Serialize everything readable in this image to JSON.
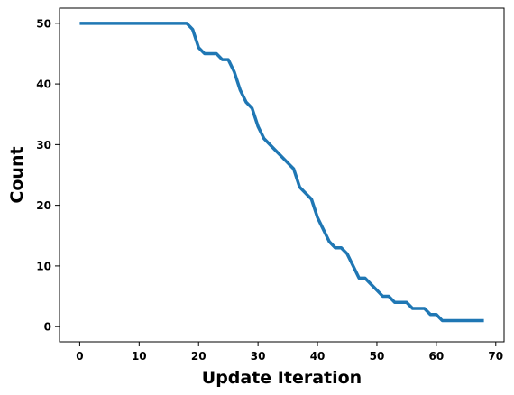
{
  "chart_data": {
    "type": "line",
    "title": "",
    "xlabel": "Update Iteration",
    "ylabel": "Count",
    "xlim": [
      -3.4,
      71.4
    ],
    "ylim": [
      -2.5,
      52.5
    ],
    "xticks": [
      0,
      10,
      20,
      30,
      40,
      50,
      60,
      70
    ],
    "yticks": [
      0,
      10,
      20,
      30,
      40,
      50
    ],
    "grid": false,
    "legend": "none",
    "color": "#1f77b4",
    "series": [
      {
        "x": [
          0,
          1,
          2,
          3,
          4,
          5,
          6,
          7,
          8,
          9,
          10,
          11,
          12,
          13,
          14,
          15,
          16,
          17,
          18,
          19,
          20,
          21,
          22,
          23,
          24,
          25,
          26,
          27,
          28,
          29,
          30,
          31,
          32,
          33,
          34,
          35,
          36,
          37,
          38,
          39,
          40,
          41,
          42,
          43,
          44,
          45,
          46,
          47,
          48,
          49,
          50,
          51,
          52,
          53,
          54,
          55,
          56,
          57,
          58,
          59,
          60,
          61,
          62,
          63,
          64,
          65,
          66,
          67,
          68
        ],
        "y": [
          50,
          50,
          50,
          50,
          50,
          50,
          50,
          50,
          50,
          50,
          50,
          50,
          50,
          50,
          50,
          50,
          50,
          50,
          50,
          49,
          46,
          45,
          45,
          45,
          44,
          44,
          42,
          39,
          37,
          36,
          33,
          31,
          30,
          29,
          28,
          27,
          26,
          23,
          22,
          21,
          18,
          16,
          14,
          13,
          13,
          12,
          10,
          8,
          8,
          7,
          6,
          5,
          5,
          4,
          4,
          4,
          3,
          3,
          3,
          2,
          2,
          1,
          1,
          1,
          1,
          1,
          1,
          1,
          1
        ]
      }
    ]
  }
}
